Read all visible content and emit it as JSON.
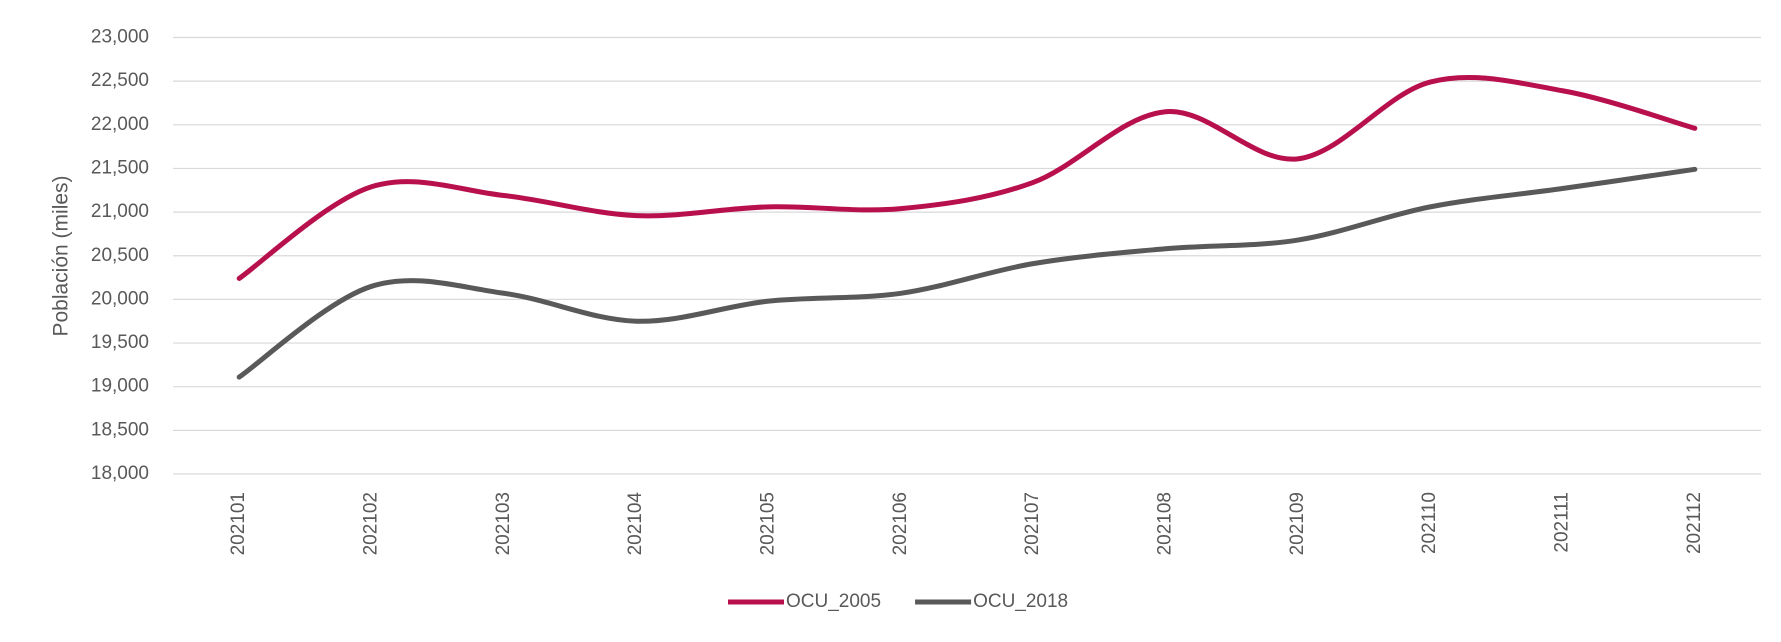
{
  "chart_data": {
    "type": "line",
    "y_label": "Población (miles)",
    "categories": [
      "202101",
      "202102",
      "202103",
      "202104",
      "202105",
      "202106",
      "202107",
      "202108",
      "202109",
      "202110",
      "202111",
      "202112"
    ],
    "series": [
      {
        "name": "OCU_2005",
        "color": "#b80f4d",
        "values": [
          20240,
          21290,
          21190,
          20960,
          21060,
          21040,
          21340,
          22150,
          21610,
          22490,
          22390,
          21960
        ]
      },
      {
        "name": "OCU_2018",
        "color": "#595959",
        "values": [
          19110,
          20150,
          20070,
          19750,
          19980,
          20070,
          20410,
          20580,
          20680,
          21060,
          21270,
          21490
        ]
      }
    ],
    "ylim": [
      18000,
      23000
    ],
    "yticks": [
      {
        "value": 18000,
        "label": "18,000"
      },
      {
        "value": 18500,
        "label": "18,500"
      },
      {
        "value": 19000,
        "label": "19,000"
      },
      {
        "value": 19500,
        "label": "19,500"
      },
      {
        "value": 20000,
        "label": "20,000"
      },
      {
        "value": 20500,
        "label": "20,500"
      },
      {
        "value": 21000,
        "label": "21,000"
      },
      {
        "value": 21500,
        "label": "21,500"
      },
      {
        "value": 22000,
        "label": "22,000"
      },
      {
        "value": 22500,
        "label": "22,500"
      },
      {
        "value": 23000,
        "label": "23,000"
      }
    ],
    "grid": true,
    "smooth": true,
    "legend": "bottom"
  }
}
